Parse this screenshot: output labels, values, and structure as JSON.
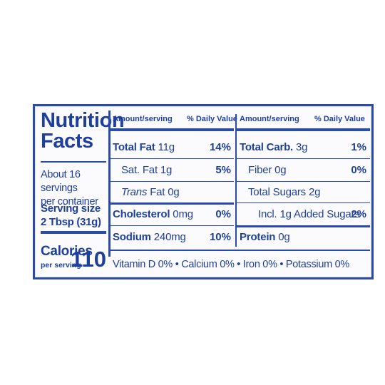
{
  "label": {
    "title_line1": "Nutrition",
    "title_line2": "Facts",
    "servings_line1": "About 16 servings",
    "servings_line2": "per container",
    "serving_size_line1": "Serving size",
    "serving_size_line2": "2 Tbsp (31g)",
    "calories_label": "Calories",
    "calories_sub": "per serving",
    "calories_value": "110"
  },
  "left_table": {
    "header_amount": "Amount/serving",
    "header_dv": "% Daily Value",
    "rows": [
      {
        "name": "Total Fat",
        "amount": " 11g",
        "dv": "14%"
      },
      {
        "name": "Sat. Fat",
        "amount": " 1g",
        "dv": "5%"
      },
      {
        "name": "Trans",
        "amount": " Fat 0g",
        "dv": ""
      },
      {
        "name": "Cholesterol",
        "amount": " 0mg",
        "dv": "0%"
      },
      {
        "name": "Sodium",
        "amount": " 240mg",
        "dv": "10%"
      }
    ]
  },
  "right_table": {
    "header_amount": "Amount/serving",
    "header_dv": "% Daily Value",
    "rows": [
      {
        "name": "Total Carb.",
        "amount": " 3g",
        "dv": "1%"
      },
      {
        "name": "Fiber",
        "amount": " 0g",
        "dv": "0%"
      },
      {
        "name": "Total Sugars",
        "amount": " 2g",
        "dv": ""
      },
      {
        "name": "Incl. 1g Added Sugars",
        "amount": "",
        "dv": "2%"
      },
      {
        "name": "Protein",
        "amount": " 0g",
        "dv": ""
      }
    ]
  },
  "vitamins": "Vitamin D 0% • Calcium 0% • Iron 0% • Potassium 0%",
  "colors": {
    "ink": "#2a4ba8",
    "background": "#fbfbfd"
  }
}
